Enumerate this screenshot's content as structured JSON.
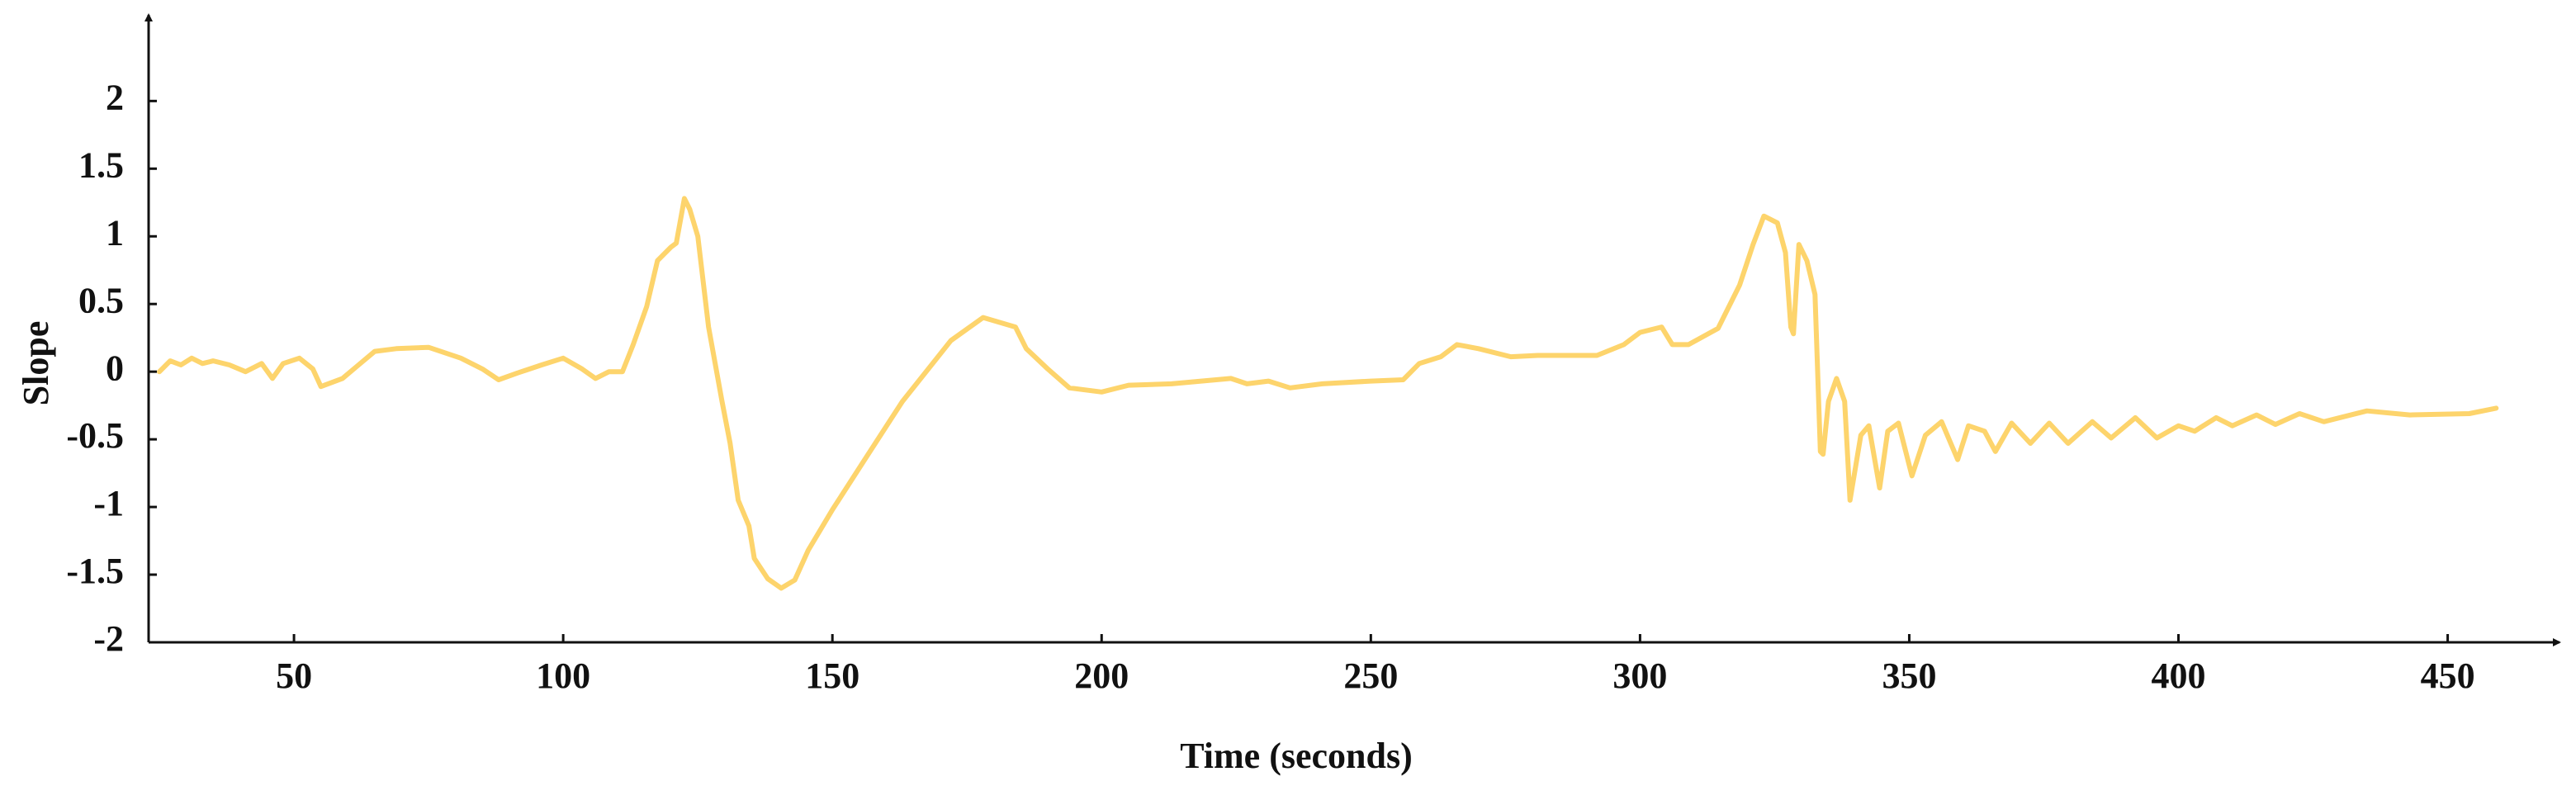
{
  "chart_data": {
    "type": "line",
    "x_label": "Time (seconds)",
    "y_label": "Slope",
    "color": "#fdd46c",
    "xlim": [
      23,
      470
    ],
    "ylim": [
      -2,
      2.6
    ],
    "xticks": [
      50,
      100,
      150,
      200,
      250,
      300,
      350,
      400,
      450
    ],
    "yticks": [
      -2,
      -1.5,
      -1,
      -0.5,
      0,
      0.5,
      1,
      1.5,
      2
    ],
    "x": [
      25,
      27,
      29,
      31,
      33,
      35,
      38,
      41,
      44,
      46,
      48,
      51,
      53.5,
      55,
      59,
      62,
      65,
      69,
      75,
      81,
      85,
      88,
      91.5,
      96,
      100,
      103.5,
      106,
      108.5,
      111,
      113,
      115.5,
      117.5,
      120,
      121,
      122.5,
      123.5,
      125,
      127,
      129.5,
      131,
      132.5,
      134.5,
      135.5,
      138,
      140.5,
      143,
      145.5,
      150,
      156,
      163,
      172,
      178,
      184,
      186,
      190,
      194,
      200,
      205,
      213,
      224,
      227,
      231,
      235,
      241,
      250,
      256,
      259,
      263,
      266,
      270,
      276,
      281,
      292,
      297,
      300,
      304,
      306,
      309,
      314.5,
      318.5,
      321,
      323,
      325.5,
      327,
      328,
      328.5,
      329.5,
      331,
      332.5,
      333.5,
      334,
      335,
      336.5,
      338,
      339,
      341,
      342.5,
      344.5,
      346,
      348,
      350.5,
      353,
      356,
      359,
      361,
      364,
      366,
      369,
      372.5,
      376,
      379.5,
      384,
      387.5,
      392,
      396,
      400,
      403,
      407,
      410,
      414.5,
      418,
      422.5,
      427,
      435,
      443,
      454,
      459
    ],
    "values": [
      0,
      0.08,
      0.05,
      0.1,
      0.06,
      0.08,
      0.05,
      0,
      0.06,
      -0.05,
      0.06,
      0.1,
      0.02,
      -0.11,
      -0.05,
      0.05,
      0.15,
      0.17,
      0.18,
      0.1,
      0.02,
      -0.06,
      -0.01,
      0.05,
      0.1,
      0.02,
      -0.05,
      0,
      0,
      0.2,
      0.48,
      0.82,
      0.92,
      0.95,
      1.28,
      1.2,
      1.0,
      0.33,
      -0.22,
      -0.53,
      -0.95,
      -1.14,
      -1.38,
      -1.53,
      -1.6,
      -1.54,
      -1.32,
      -1.02,
      -0.65,
      -0.22,
      0.23,
      0.4,
      0.33,
      0.17,
      0.02,
      -0.12,
      -0.15,
      -0.1,
      -0.09,
      -0.05,
      -0.09,
      -0.07,
      -0.12,
      -0.09,
      -0.07,
      -0.06,
      0.06,
      0.11,
      0.2,
      0.17,
      0.11,
      0.12,
      0.12,
      0.2,
      0.29,
      0.33,
      0.2,
      0.2,
      0.32,
      0.64,
      0.94,
      1.15,
      1.1,
      0.88,
      0.33,
      0.28,
      0.94,
      0.82,
      0.57,
      -0.59,
      -0.61,
      -0.22,
      -0.05,
      -0.22,
      -0.95,
      -0.47,
      -0.4,
      -0.86,
      -0.44,
      -0.38,
      -0.77,
      -0.47,
      -0.37,
      -0.65,
      -0.4,
      -0.44,
      -0.59,
      -0.38,
      -0.53,
      -0.38,
      -0.53,
      -0.37,
      -0.49,
      -0.34,
      -0.49,
      -0.4,
      -0.44,
      -0.34,
      -0.4,
      -0.32,
      -0.39,
      -0.31,
      -0.37,
      -0.29,
      -0.32,
      -0.31,
      -0.27
    ]
  }
}
